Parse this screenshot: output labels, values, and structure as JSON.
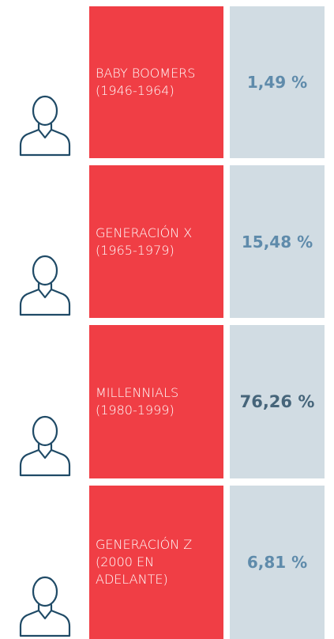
{
  "rows": [
    {
      "label": [
        "BABY BOOMERS",
        "(1946-1964)"
      ],
      "value": "1,49 %"
    },
    {
      "label": [
        "GENERACIÓN X",
        "(1965-1979)"
      ],
      "value": "15,48 %"
    },
    {
      "label": [
        "MILLENNIALS",
        "(1980-1999)"
      ],
      "value": "76,26 %"
    },
    {
      "label": [
        "GENERACIÓN Z",
        "(2000 EN",
        "ADELANTE)"
      ],
      "value": "6,81 %"
    }
  ]
}
